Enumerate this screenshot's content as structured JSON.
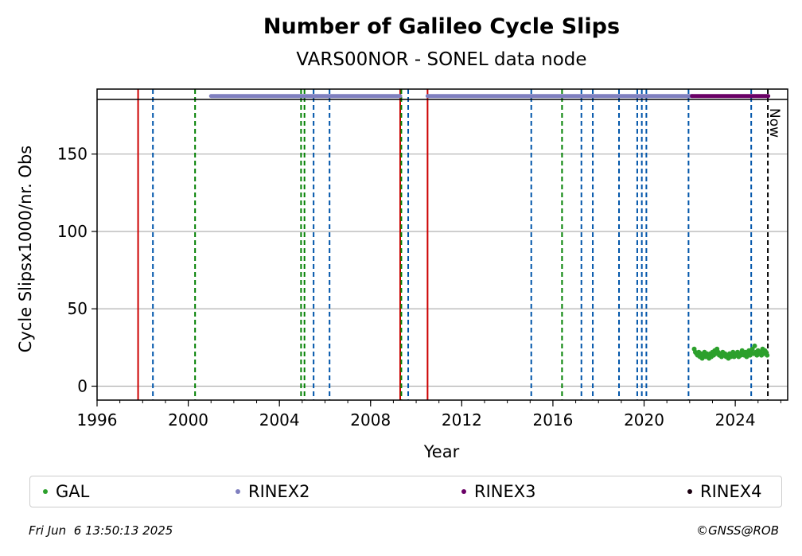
{
  "chart_data": {
    "type": "scatter",
    "title": "Number of Galileo Cycle Slips",
    "subtitle": "VARS00NOR - SONEL data node",
    "xlabel": "Year",
    "ylabel": "Cycle Slipsx1000/nr. Obs",
    "xlim": [
      1996,
      2026.3
    ],
    "ylim": [
      -9,
      192
    ],
    "xticks": [
      1996,
      2000,
      2004,
      2008,
      2012,
      2016,
      2020,
      2024
    ],
    "yticks": [
      0,
      50,
      100,
      150
    ],
    "grid": "horizontal",
    "legend_position": "bottom",
    "now_label": "Now",
    "now_year": 2025.43,
    "events": {
      "red_solid": [
        1997.8,
        2009.3,
        2010.5
      ],
      "blue_dashed": [
        1998.45,
        2005.5,
        2006.2,
        2009.65,
        2015.05,
        2017.25,
        2017.75,
        2018.9,
        2019.7,
        2019.9,
        2020.1,
        2021.95,
        2024.7
      ],
      "green_dashed": [
        2000.3,
        2004.95,
        2005.1,
        2009.35,
        2016.4
      ]
    },
    "series": [
      {
        "name": "GAL",
        "color": "#2ca02c",
        "points": [
          [
            2022.2,
            24
          ],
          [
            2022.25,
            22
          ],
          [
            2022.3,
            21
          ],
          [
            2022.35,
            20
          ],
          [
            2022.4,
            22
          ],
          [
            2022.45,
            19
          ],
          [
            2022.5,
            21
          ],
          [
            2022.55,
            18
          ],
          [
            2022.6,
            20
          ],
          [
            2022.65,
            22
          ],
          [
            2022.7,
            19
          ],
          [
            2022.75,
            21
          ],
          [
            2022.8,
            20
          ],
          [
            2022.85,
            18
          ],
          [
            2022.9,
            21
          ],
          [
            2022.95,
            19
          ],
          [
            2023.0,
            22
          ],
          [
            2023.05,
            20
          ],
          [
            2023.1,
            23
          ],
          [
            2023.15,
            21
          ],
          [
            2023.2,
            24
          ],
          [
            2023.25,
            22
          ],
          [
            2023.3,
            20
          ],
          [
            2023.35,
            21
          ],
          [
            2023.4,
            19
          ],
          [
            2023.45,
            22
          ],
          [
            2023.5,
            20
          ],
          [
            2023.55,
            21
          ],
          [
            2023.6,
            19
          ],
          [
            2023.65,
            20
          ],
          [
            2023.7,
            18
          ],
          [
            2023.75,
            21
          ],
          [
            2023.8,
            19
          ],
          [
            2023.85,
            20
          ],
          [
            2023.9,
            22
          ],
          [
            2023.95,
            19
          ],
          [
            2024.0,
            21
          ],
          [
            2024.05,
            20
          ],
          [
            2024.1,
            22
          ],
          [
            2024.15,
            19
          ],
          [
            2024.2,
            21
          ],
          [
            2024.25,
            20
          ],
          [
            2024.3,
            23
          ],
          [
            2024.35,
            21
          ],
          [
            2024.4,
            20
          ],
          [
            2024.45,
            22
          ],
          [
            2024.5,
            19
          ],
          [
            2024.55,
            21
          ],
          [
            2024.6,
            23
          ],
          [
            2024.65,
            20
          ],
          [
            2024.7,
            22
          ],
          [
            2024.75,
            24
          ],
          [
            2024.8,
            21
          ],
          [
            2024.85,
            26
          ],
          [
            2024.9,
            22
          ],
          [
            2024.95,
            20
          ],
          [
            2025.0,
            23
          ],
          [
            2025.05,
            21
          ],
          [
            2025.1,
            22
          ],
          [
            2025.15,
            20
          ],
          [
            2025.2,
            24
          ],
          [
            2025.25,
            21
          ],
          [
            2025.3,
            23
          ],
          [
            2025.35,
            22
          ],
          [
            2025.4,
            20
          ]
        ]
      },
      {
        "name": "RINEX2",
        "color": "#7f7fbf",
        "bands": [
          [
            2001.0,
            2009.3
          ],
          [
            2010.5,
            2022.1
          ]
        ],
        "y": 187.5
      },
      {
        "name": "RINEX3",
        "color": "#6a0066",
        "bands": [
          [
            2022.1,
            2025.45
          ]
        ],
        "y": 187.5
      },
      {
        "name": "RINEX4",
        "color": "#1a0010",
        "bands": [],
        "y": 187.5
      }
    ]
  },
  "legend": [
    {
      "label": "GAL",
      "color": "#2ca02c"
    },
    {
      "label": "RINEX2",
      "color": "#7f7fbf"
    },
    {
      "label": "RINEX3",
      "color": "#6a0066"
    },
    {
      "label": "RINEX4",
      "color": "#1a0010"
    }
  ],
  "footer": {
    "timestamp": "Fri Jun  6 13:50:13 2025",
    "credit": "©GNSS@ROB"
  }
}
